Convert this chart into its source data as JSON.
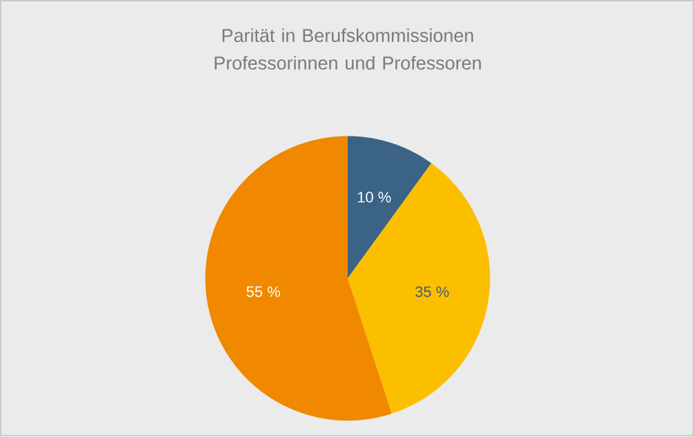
{
  "chart_data": {
    "type": "pie",
    "title": "Parität in Berufskommissionen Professorinnen und Professoren",
    "categories": [
      null,
      null,
      null
    ],
    "values": [
      10,
      35,
      55
    ],
    "colors": [
      "#3b6386",
      "#fbbf00",
      "#f08800"
    ],
    "value_labels": [
      "10 %",
      "35 %",
      "55 %"
    ]
  }
}
